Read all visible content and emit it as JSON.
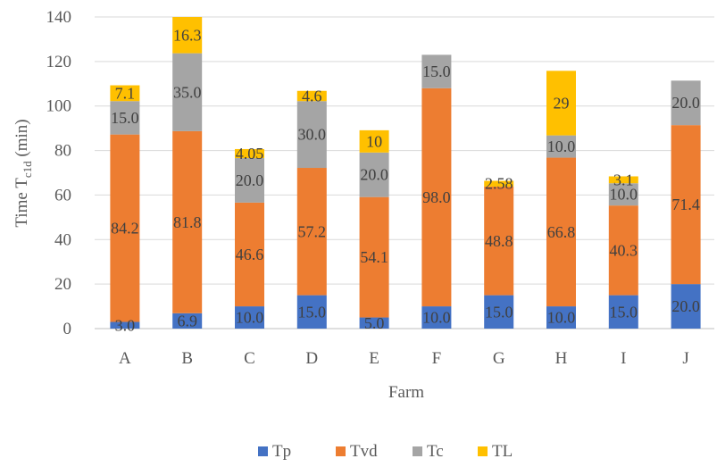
{
  "chart_data": {
    "type": "bar",
    "stacked": true,
    "categories": [
      "A",
      "B",
      "C",
      "D",
      "E",
      "F",
      "G",
      "H",
      "I",
      "J"
    ],
    "series": [
      {
        "name": "Tp",
        "color": "#4472C4",
        "values": [
          3.0,
          6.9,
          10.0,
          15.0,
          5.0,
          10.0,
          15.0,
          10.0,
          15.0,
          20.0
        ],
        "labels": [
          "3.0",
          "6.9",
          "10.0",
          "15.0",
          "5.0",
          "10.0",
          "15.0",
          "10.0",
          "15.0",
          "20.0"
        ]
      },
      {
        "name": "Tvd",
        "color": "#ED7D31",
        "values": [
          84.2,
          81.8,
          46.6,
          57.2,
          54.1,
          98.0,
          48.8,
          66.8,
          40.3,
          71.4
        ],
        "labels": [
          "84.2",
          "81.8",
          "46.6",
          "57.2",
          "54.1",
          "98.0",
          "48.8",
          "66.8",
          "40.3",
          "71.4"
        ]
      },
      {
        "name": "Tc",
        "color": "#A5A5A5",
        "values": [
          15.0,
          35.0,
          20.0,
          30.0,
          20.0,
          15.0,
          0,
          10.0,
          10.0,
          20.0
        ],
        "labels": [
          "15.0",
          "35.0",
          "20.0",
          "30.0",
          "20.0",
          "15.0",
          "",
          "10.0",
          "10.0",
          "20.0"
        ]
      },
      {
        "name": "TL",
        "color": "#FFC000",
        "values": [
          7.1,
          16.3,
          4.05,
          4.6,
          10,
          0,
          2.58,
          29,
          3.1,
          0
        ],
        "labels": [
          "7.1",
          "16.3",
          "4.05",
          "4.6",
          "10",
          "",
          "2.58",
          "29",
          "3.1",
          ""
        ]
      }
    ],
    "xlabel": "Farm",
    "ylabel_main": "Time T",
    "ylabel_sub": "c1d",
    "ylabel_unit": " (min)",
    "ylim": [
      0,
      140
    ],
    "yticks": [
      0,
      20,
      40,
      60,
      80,
      100,
      120,
      140
    ],
    "grid": true,
    "legend_position": "bottom"
  }
}
